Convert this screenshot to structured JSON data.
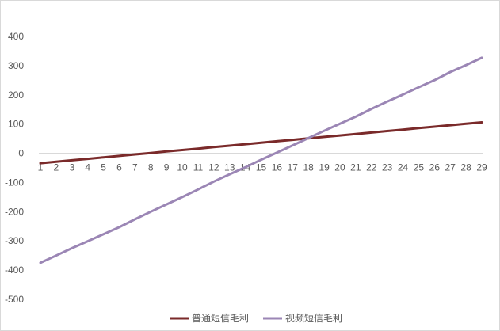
{
  "chart_data": {
    "type": "line",
    "x": [
      1,
      2,
      3,
      4,
      5,
      6,
      7,
      8,
      9,
      10,
      11,
      12,
      13,
      14,
      15,
      16,
      17,
      18,
      19,
      20,
      21,
      22,
      23,
      24,
      25,
      26,
      27,
      28,
      29
    ],
    "ylim": [
      -500,
      400
    ],
    "yticks": [
      400,
      300,
      200,
      100,
      0,
      -100,
      -200,
      -300,
      -400,
      -500
    ],
    "grid": false,
    "legend": "bottom",
    "series": [
      {
        "name": "普通短信毛利",
        "color": "#7a2a2a",
        "values": [
          -34,
          -29,
          -24,
          -19,
          -14,
          -9,
          -4,
          1,
          6,
          11,
          16,
          21,
          26,
          31,
          36,
          41,
          46,
          51,
          56,
          61,
          66,
          71,
          76,
          81,
          86,
          91,
          96,
          101,
          106
        ]
      },
      {
        "name": "视频短信毛利",
        "color": "#9b86b5",
        "values": [
          -375,
          -350,
          -325,
          -301,
          -277,
          -253,
          -226,
          -200,
          -175,
          -150,
          -124,
          -97,
          -72,
          -48,
          -22,
          2,
          27,
          52,
          77,
          101,
          125,
          152,
          177,
          201,
          226,
          250,
          278,
          302,
          327
        ]
      }
    ]
  }
}
